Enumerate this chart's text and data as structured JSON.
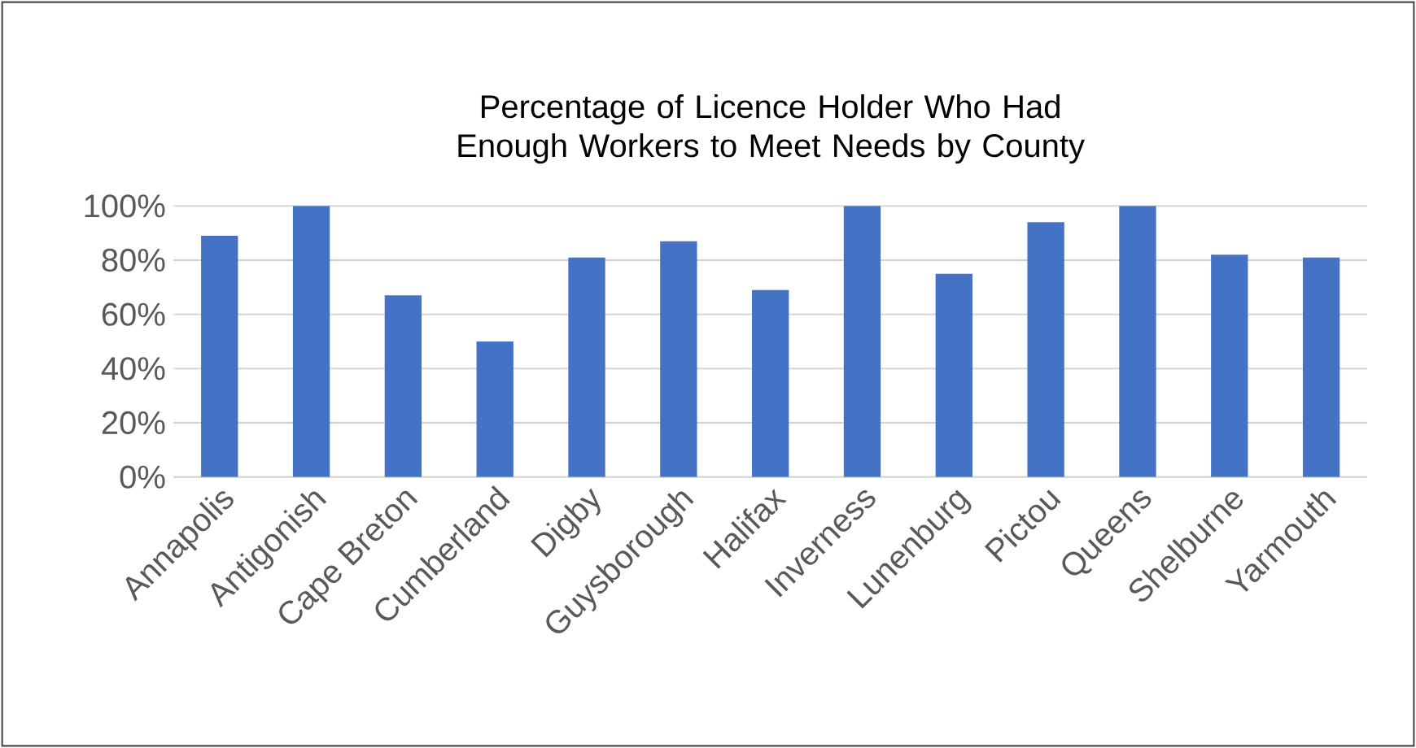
{
  "chart_data": {
    "type": "bar",
    "title": "Percentage of Licence Holder Who Had Enough Workers to Meet Needs by County",
    "categories": [
      "Annapolis",
      "Antigonish",
      "Cape Breton",
      "Cumberland",
      "Digby",
      "Guysborough",
      "Halifax",
      "Inverness",
      "Lunenburg",
      "Pictou",
      "Queens",
      "Shelburne",
      "Yarmouth"
    ],
    "values": [
      89,
      100,
      67,
      50,
      81,
      87,
      69,
      100,
      75,
      94,
      100,
      82,
      81
    ],
    "color": "#4472c4",
    "ylim": [
      0,
      100
    ],
    "yticks": [
      {
        "value": 0,
        "label": "0%"
      },
      {
        "value": 20,
        "label": "20%"
      },
      {
        "value": 40,
        "label": "40%"
      },
      {
        "value": 60,
        "label": "60%"
      },
      {
        "value": 80,
        "label": "80%"
      },
      {
        "value": 100,
        "label": "100%"
      }
    ],
    "grid": "y"
  }
}
